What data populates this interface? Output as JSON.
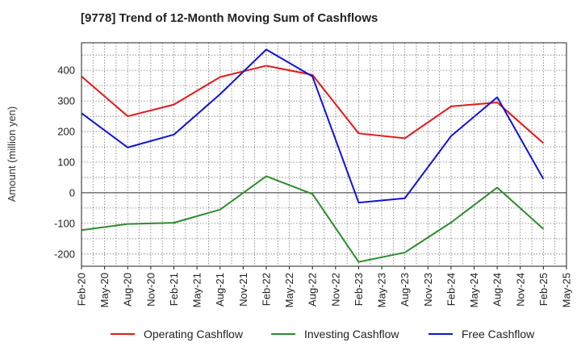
{
  "chart_data": {
    "type": "line",
    "title": "[9778]  Trend of 12-Month Moving Sum of Cashflows",
    "xlabel": "",
    "ylabel": "Amount (million yen)",
    "ylim": [
      -240,
      490
    ],
    "y_ticks": [
      -200,
      -100,
      0,
      100,
      200,
      300,
      400
    ],
    "x_ticks": [
      "Feb-20",
      "May-20",
      "Aug-20",
      "Nov-20",
      "Feb-21",
      "May-21",
      "Aug-21",
      "Nov-21",
      "Feb-22",
      "May-22",
      "Aug-22",
      "Nov-22",
      "Feb-23",
      "May-23",
      "Aug-23",
      "Nov-23",
      "Feb-24",
      "May-24",
      "Aug-24",
      "Nov-24",
      "Feb-25",
      "May-25"
    ],
    "x": [
      "Feb-20",
      "Aug-20",
      "Feb-21",
      "Aug-21",
      "Feb-22",
      "Aug-22",
      "Feb-23",
      "Aug-23",
      "Feb-24",
      "Aug-24",
      "Feb-25"
    ],
    "grid": true,
    "legend_position": "bottom",
    "series": [
      {
        "name": "Operating Cashflow",
        "color": "#e31a1c",
        "values": [
          380,
          250,
          288,
          378,
          415,
          385,
          194,
          178,
          282,
          295,
          162
        ]
      },
      {
        "name": "Investing Cashflow",
        "color": "#2e8b2e",
        "values": [
          -122,
          -102,
          -98,
          -55,
          54,
          -4,
          -226,
          -195,
          -97,
          17,
          -118
        ]
      },
      {
        "name": "Free Cashflow",
        "color": "#1414d0",
        "values": [
          260,
          148,
          190,
          322,
          468,
          380,
          -32,
          -18,
          185,
          312,
          45
        ]
      }
    ]
  }
}
